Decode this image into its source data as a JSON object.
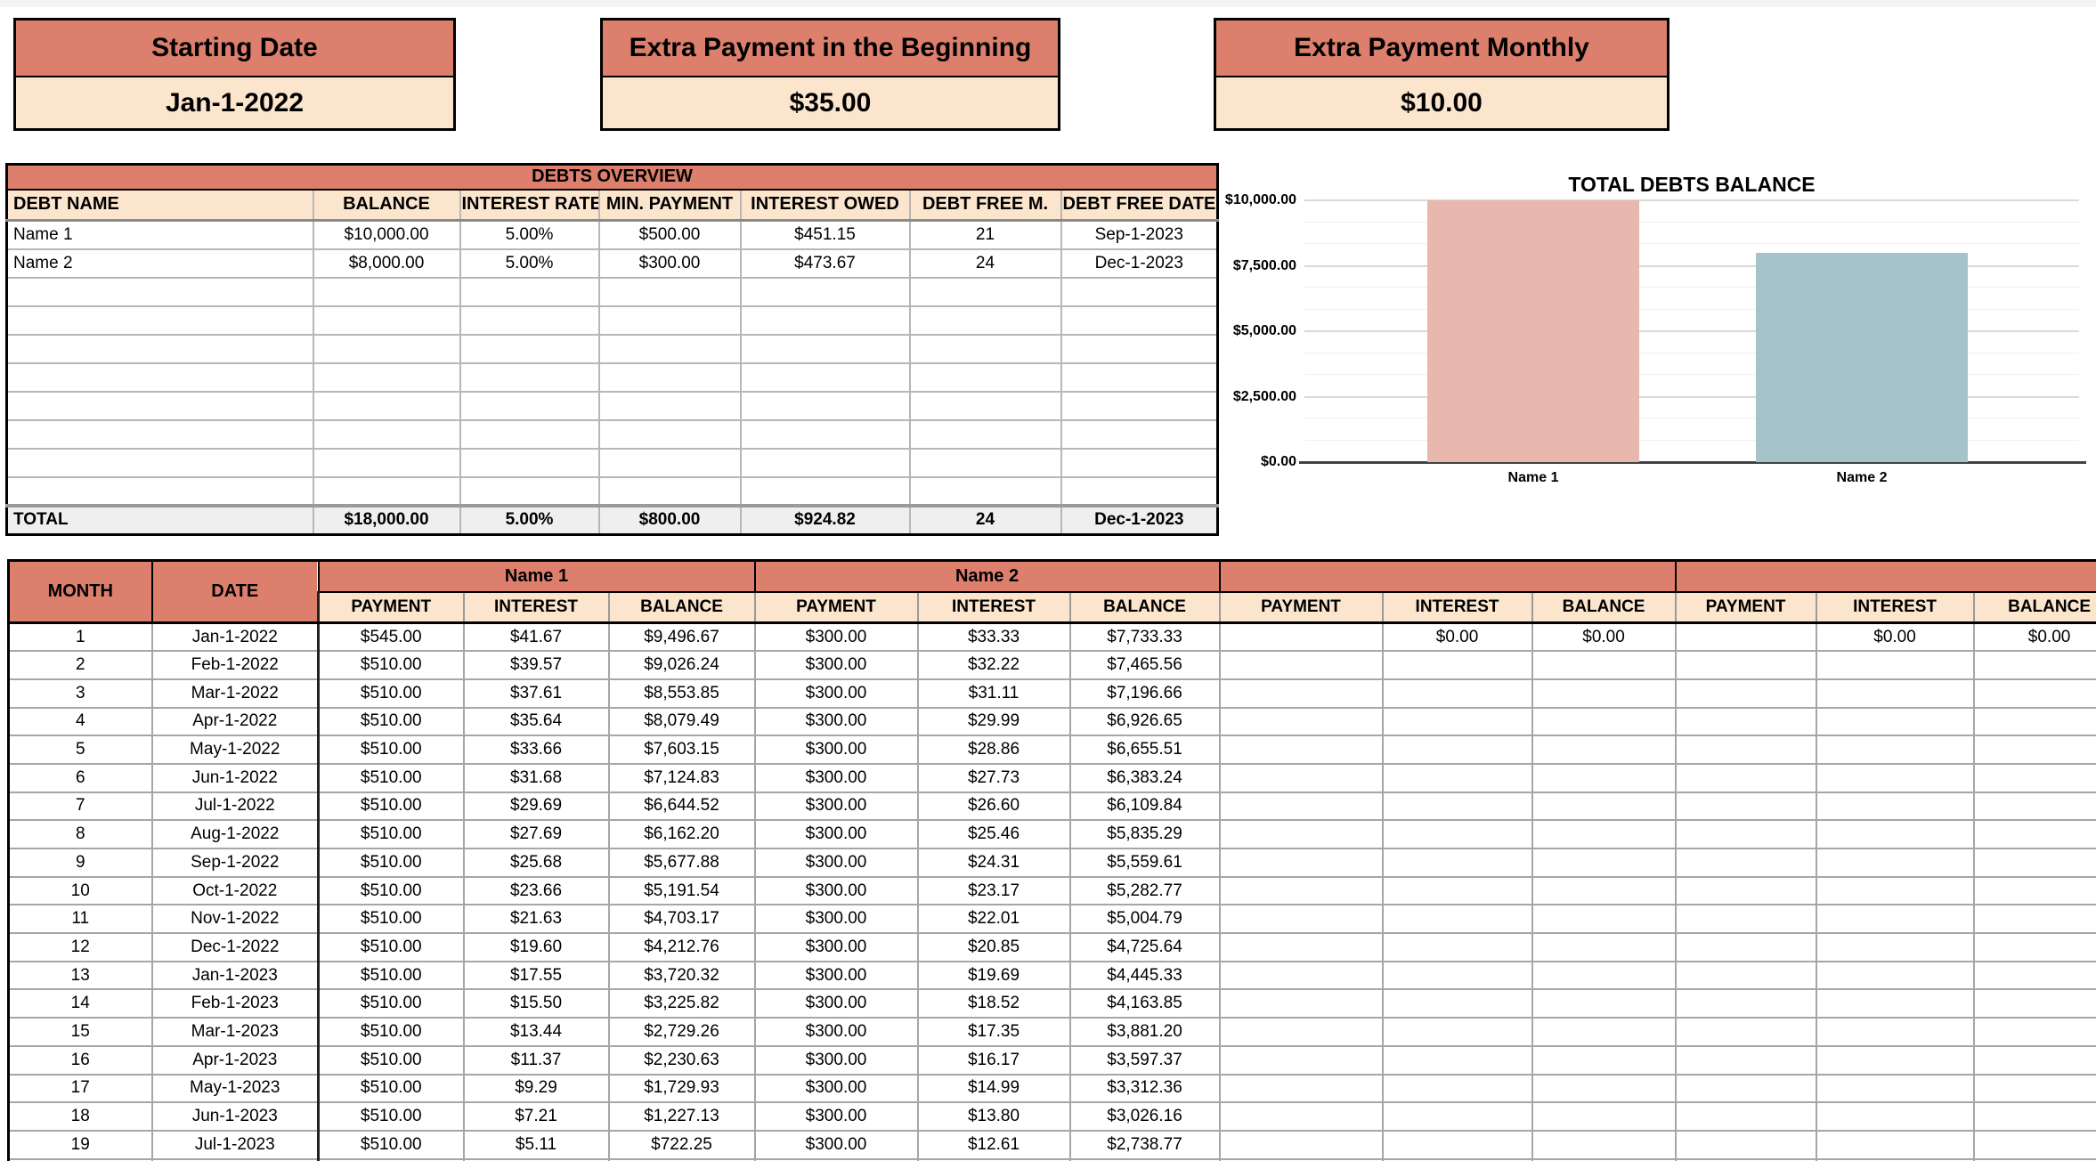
{
  "colors": {
    "accent_salmon": "#DC7F6C",
    "accent_cream": "#FCE5CD",
    "total_row_bg": "#EFEFEF",
    "bar_pink": "#E8B7AE",
    "bar_teal": "#A4C4CA"
  },
  "info_cards": [
    {
      "title": "Starting Date",
      "value": "Jan-1-2022"
    },
    {
      "title": "Extra Payment in the Beginning",
      "value": "$35.00"
    },
    {
      "title": "Extra Payment Monthly",
      "value": "$10.00"
    }
  ],
  "debts_overview": {
    "title": "DEBTS OVERVIEW",
    "columns": [
      "DEBT NAME",
      "BALANCE",
      "INTEREST RATE",
      "MIN. PAYMENT",
      "INTEREST OWED",
      "DEBT FREE M.",
      "DEBT FREE DATE"
    ],
    "rows": [
      [
        "Name 1",
        "$10,000.00",
        "5.00%",
        "$500.00",
        "$451.15",
        "21",
        "Sep-1-2023"
      ],
      [
        "Name 2",
        "$8,000.00",
        "5.00%",
        "$300.00",
        "$473.67",
        "24",
        "Dec-1-2023"
      ],
      [
        "",
        "",
        "",
        "",
        "",
        "",
        ""
      ],
      [
        "",
        "",
        "",
        "",
        "",
        "",
        ""
      ],
      [
        "",
        "",
        "",
        "",
        "",
        "",
        ""
      ],
      [
        "",
        "",
        "",
        "",
        "",
        "",
        ""
      ],
      [
        "",
        "",
        "",
        "",
        "",
        "",
        ""
      ],
      [
        "",
        "",
        "",
        "",
        "",
        "",
        ""
      ],
      [
        "",
        "",
        "",
        "",
        "",
        "",
        ""
      ],
      [
        "",
        "",
        "",
        "",
        "",
        "",
        ""
      ]
    ],
    "total_row": [
      "TOTAL",
      "$18,000.00",
      "5.00%",
      "$800.00",
      "$924.82",
      "24",
      "Dec-1-2023"
    ]
  },
  "chart_data": {
    "type": "bar",
    "title": "TOTAL DEBTS BALANCE",
    "categories": [
      "Name 1",
      "Name 2"
    ],
    "values": [
      10000,
      8000
    ],
    "bar_colors": [
      "#E8B7AE",
      "#A4C4CA"
    ],
    "ylim": [
      0,
      10000
    ],
    "yticks": [
      {
        "label": "$10,000.00",
        "value": 10000
      },
      {
        "label": "$7,500.00",
        "value": 7500
      },
      {
        "label": "$5,000.00",
        "value": 5000
      },
      {
        "label": "$2,500.00",
        "value": 2500
      },
      {
        "label": "$0.00",
        "value": 0
      }
    ],
    "grid": true,
    "legend": false,
    "xlabel": "",
    "ylabel": ""
  },
  "schedule": {
    "month_header": "MONTH",
    "date_header": "DATE",
    "group_names": [
      "Name 1",
      "Name 2",
      "",
      ""
    ],
    "sub_headers": [
      "PAYMENT",
      "INTEREST",
      "BALANCE"
    ],
    "rows": [
      {
        "month": "1",
        "date": "Jan-1-2022",
        "cells": [
          "$545.00",
          "$41.67",
          "$9,496.67",
          "$300.00",
          "$33.33",
          "$7,733.33",
          "",
          "$0.00",
          "$0.00",
          "",
          "$0.00",
          "$0.00"
        ]
      },
      {
        "month": "2",
        "date": "Feb-1-2022",
        "cells": [
          "$510.00",
          "$39.57",
          "$9,026.24",
          "$300.00",
          "$32.22",
          "$7,465.56",
          "",
          "",
          "",
          "",
          "",
          ""
        ]
      },
      {
        "month": "3",
        "date": "Mar-1-2022",
        "cells": [
          "$510.00",
          "$37.61",
          "$8,553.85",
          "$300.00",
          "$31.11",
          "$7,196.66",
          "",
          "",
          "",
          "",
          "",
          ""
        ]
      },
      {
        "month": "4",
        "date": "Apr-1-2022",
        "cells": [
          "$510.00",
          "$35.64",
          "$8,079.49",
          "$300.00",
          "$29.99",
          "$6,926.65",
          "",
          "",
          "",
          "",
          "",
          ""
        ]
      },
      {
        "month": "5",
        "date": "May-1-2022",
        "cells": [
          "$510.00",
          "$33.66",
          "$7,603.15",
          "$300.00",
          "$28.86",
          "$6,655.51",
          "",
          "",
          "",
          "",
          "",
          ""
        ]
      },
      {
        "month": "6",
        "date": "Jun-1-2022",
        "cells": [
          "$510.00",
          "$31.68",
          "$7,124.83",
          "$300.00",
          "$27.73",
          "$6,383.24",
          "",
          "",
          "",
          "",
          "",
          ""
        ]
      },
      {
        "month": "7",
        "date": "Jul-1-2022",
        "cells": [
          "$510.00",
          "$29.69",
          "$6,644.52",
          "$300.00",
          "$26.60",
          "$6,109.84",
          "",
          "",
          "",
          "",
          "",
          ""
        ]
      },
      {
        "month": "8",
        "date": "Aug-1-2022",
        "cells": [
          "$510.00",
          "$27.69",
          "$6,162.20",
          "$300.00",
          "$25.46",
          "$5,835.29",
          "",
          "",
          "",
          "",
          "",
          ""
        ]
      },
      {
        "month": "9",
        "date": "Sep-1-2022",
        "cells": [
          "$510.00",
          "$25.68",
          "$5,677.88",
          "$300.00",
          "$24.31",
          "$5,559.61",
          "",
          "",
          "",
          "",
          "",
          ""
        ]
      },
      {
        "month": "10",
        "date": "Oct-1-2022",
        "cells": [
          "$510.00",
          "$23.66",
          "$5,191.54",
          "$300.00",
          "$23.17",
          "$5,282.77",
          "",
          "",
          "",
          "",
          "",
          ""
        ]
      },
      {
        "month": "11",
        "date": "Nov-1-2022",
        "cells": [
          "$510.00",
          "$21.63",
          "$4,703.17",
          "$300.00",
          "$22.01",
          "$5,004.79",
          "",
          "",
          "",
          "",
          "",
          ""
        ]
      },
      {
        "month": "12",
        "date": "Dec-1-2022",
        "cells": [
          "$510.00",
          "$19.60",
          "$4,212.76",
          "$300.00",
          "$20.85",
          "$4,725.64",
          "",
          "",
          "",
          "",
          "",
          ""
        ]
      },
      {
        "month": "13",
        "date": "Jan-1-2023",
        "cells": [
          "$510.00",
          "$17.55",
          "$3,720.32",
          "$300.00",
          "$19.69",
          "$4,445.33",
          "",
          "",
          "",
          "",
          "",
          ""
        ]
      },
      {
        "month": "14",
        "date": "Feb-1-2023",
        "cells": [
          "$510.00",
          "$15.50",
          "$3,225.82",
          "$300.00",
          "$18.52",
          "$4,163.85",
          "",
          "",
          "",
          "",
          "",
          ""
        ]
      },
      {
        "month": "15",
        "date": "Mar-1-2023",
        "cells": [
          "$510.00",
          "$13.44",
          "$2,729.26",
          "$300.00",
          "$17.35",
          "$3,881.20",
          "",
          "",
          "",
          "",
          "",
          ""
        ]
      },
      {
        "month": "16",
        "date": "Apr-1-2023",
        "cells": [
          "$510.00",
          "$11.37",
          "$2,230.63",
          "$300.00",
          "$16.17",
          "$3,597.37",
          "",
          "",
          "",
          "",
          "",
          ""
        ]
      },
      {
        "month": "17",
        "date": "May-1-2023",
        "cells": [
          "$510.00",
          "$9.29",
          "$1,729.93",
          "$300.00",
          "$14.99",
          "$3,312.36",
          "",
          "",
          "",
          "",
          "",
          ""
        ]
      },
      {
        "month": "18",
        "date": "Jun-1-2023",
        "cells": [
          "$510.00",
          "$7.21",
          "$1,227.13",
          "$300.00",
          "$13.80",
          "$3,026.16",
          "",
          "",
          "",
          "",
          "",
          ""
        ]
      },
      {
        "month": "19",
        "date": "Jul-1-2023",
        "cells": [
          "$510.00",
          "$5.11",
          "$722.25",
          "$300.00",
          "$12.61",
          "$2,738.77",
          "",
          "",
          "",
          "",
          "",
          ""
        ]
      }
    ]
  }
}
